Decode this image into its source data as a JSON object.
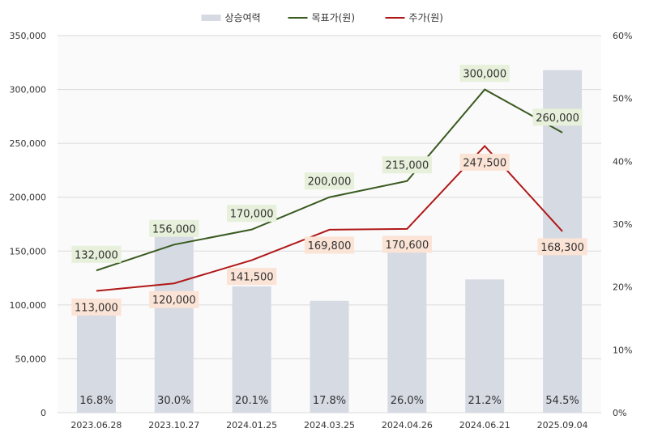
{
  "chart_data": {
    "type": "bar+line",
    "title": "",
    "categories": [
      "2023.06.28",
      "2023.10.27",
      "2024.01.25",
      "2024.03.25",
      "2024.04.26",
      "2024.06.21",
      "2025.09.04"
    ],
    "y_left": {
      "min": 0,
      "max": 350000,
      "ticks": [
        "0",
        "50,000",
        "100,000",
        "150,000",
        "200,000",
        "250,000",
        "300,000",
        "350,000"
      ],
      "tick_values": [
        0,
        50000,
        100000,
        150000,
        200000,
        250000,
        300000,
        350000
      ]
    },
    "y_right": {
      "min": 0,
      "max": 60,
      "ticks": [
        "0%",
        "10%",
        "20%",
        "30%",
        "40%",
        "50%",
        "60%"
      ],
      "tick_values": [
        0,
        10,
        20,
        30,
        40,
        50,
        60
      ]
    },
    "series": [
      {
        "name": "상승여력",
        "type": "bar",
        "axis": "right",
        "values": [
          16.8,
          30.0,
          20.1,
          17.8,
          26.0,
          21.2,
          54.5
        ],
        "labels": [
          "16.8%",
          "30.0%",
          "20.1%",
          "17.8%",
          "26.0%",
          "21.2%",
          "54.5%"
        ],
        "color": "#d5dae3"
      },
      {
        "name": "목표가(원)",
        "type": "line",
        "axis": "left",
        "values": [
          132000,
          156000,
          170000,
          200000,
          215000,
          300000,
          260000
        ],
        "labels": [
          "132,000",
          "156,000",
          "170,000",
          "200,000",
          "215,000",
          "300,000",
          "260,000"
        ],
        "color": "#3a5a20",
        "label_bg": "#e6f0da"
      },
      {
        "name": "주가(원)",
        "type": "line",
        "axis": "left",
        "values": [
          113000,
          120000,
          141500,
          169800,
          170600,
          247500,
          168300
        ],
        "labels": [
          "113,000",
          "120,000",
          "141,500",
          "169,800",
          "170,600",
          "247,500",
          "168,300"
        ],
        "color": "#b01818",
        "label_bg": "#fbe3d6"
      }
    ],
    "grid": true,
    "legend": "top-center",
    "plot_bg": "#fafafa"
  }
}
